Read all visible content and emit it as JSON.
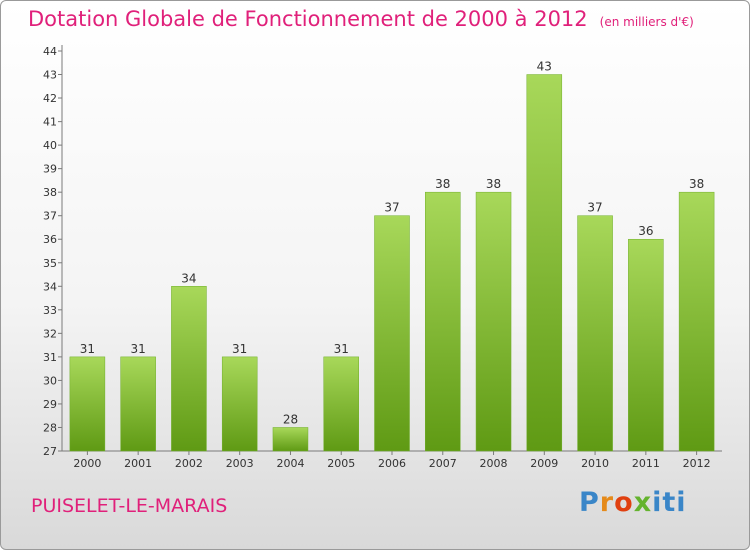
{
  "chart_data": {
    "type": "bar",
    "title": "Dotation Globale de Fonctionnement de 2000 à 2012",
    "subtitle": "(en milliers d'€)",
    "categories": [
      "2000",
      "2001",
      "2002",
      "2003",
      "2004",
      "2005",
      "2006",
      "2007",
      "2008",
      "2009",
      "2010",
      "2011",
      "2012"
    ],
    "values": [
      31,
      31,
      34,
      31,
      28,
      31,
      37,
      38,
      38,
      43,
      37,
      36,
      38
    ],
    "ylim": [
      27,
      44
    ],
    "yticks": [
      27,
      28,
      29,
      30,
      31,
      32,
      33,
      34,
      35,
      36,
      37,
      38,
      39,
      40,
      41,
      42,
      43,
      44
    ],
    "xlabel": "",
    "ylabel": "",
    "grid": false,
    "bar_color": "#7dc13a"
  },
  "footer": {
    "location": "PUISELET-LE-MARAIS",
    "logo_text": "Proxiti"
  },
  "colors": {
    "accent": "#e0207a"
  }
}
